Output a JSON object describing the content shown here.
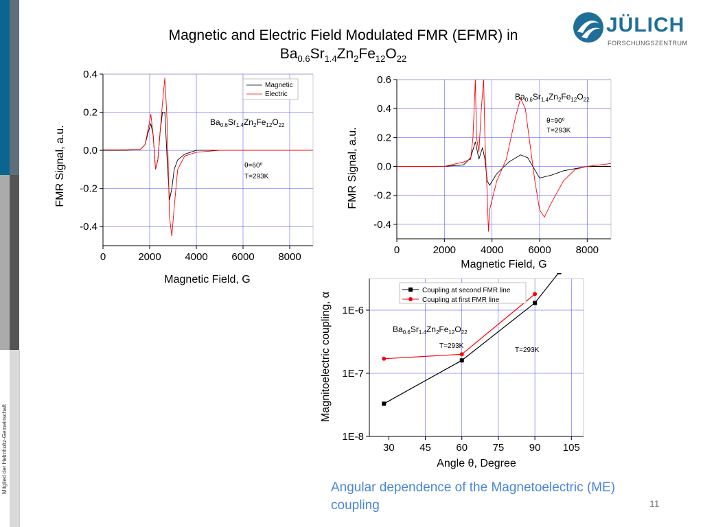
{
  "slide": {
    "title_line1": "Magnetic and Electric Field Modulated FMR (EFMR) in",
    "formula": [
      "Ba",
      "0.6",
      "Sr",
      "1.4",
      "Zn",
      "2",
      "Fe",
      "12",
      "O",
      "22"
    ],
    "caption": "Angular dependence of the Magnetoelectric (ME) coupling",
    "page_number": "11",
    "side_text": "Mitglied der Helmholtz-Gemeinschaft",
    "logo_word": "JÜLICH",
    "logo_sub": "FORSCHUNGSZENTRUM",
    "colors": {
      "brand_blue": "#1f6e98",
      "caption_blue": "#4a86d8",
      "grid": "#4040ff",
      "magnetic": "#000000",
      "electric": "#ff0000"
    }
  },
  "chart_data": [
    {
      "type": "line",
      "xlabel": "Magnetic Field, G",
      "ylabel": "FMR Signal, a.u.",
      "xlim": [
        0,
        9000
      ],
      "ylim": [
        -0.5,
        0.4
      ],
      "xticks": [
        0,
        2000,
        4000,
        6000,
        8000
      ],
      "yticks": [
        0.4,
        0.2,
        0.0,
        -0.2,
        -0.4
      ],
      "ytick_labels": [
        "0.4",
        "0.2",
        "0.0",
        "-0.2",
        "-0.4"
      ],
      "grid": true,
      "legend_position": "top-right",
      "annotations": [
        "θ=60⁰",
        "T=293K"
      ],
      "series": [
        {
          "name": "Magnetic",
          "color": "#000000",
          "x": [
            0,
            1000,
            1600,
            1800,
            1950,
            2050,
            2150,
            2250,
            2350,
            2450,
            2550,
            2650,
            2750,
            2850,
            2950,
            3050,
            3200,
            3500,
            4000,
            5000,
            9000
          ],
          "y": [
            0,
            0,
            0.005,
            0.03,
            0.1,
            0.14,
            0.08,
            -0.1,
            -0.05,
            0.1,
            0.2,
            0.2,
            -0.05,
            -0.26,
            -0.2,
            -0.1,
            -0.05,
            -0.02,
            0,
            0,
            0
          ]
        },
        {
          "name": "Electric",
          "color": "#ff0000",
          "x": [
            0,
            1000,
            1600,
            1800,
            1950,
            2050,
            2150,
            2250,
            2350,
            2450,
            2550,
            2650,
            2750,
            2850,
            2950,
            3050,
            3200,
            3500,
            4000,
            5000,
            9000
          ],
          "y": [
            0.003,
            0.003,
            0.005,
            0.03,
            0.12,
            0.19,
            0.08,
            -0.1,
            -0.05,
            0.1,
            0.25,
            0.38,
            0.15,
            -0.35,
            -0.45,
            -0.3,
            -0.1,
            -0.03,
            -0.01,
            0,
            0
          ]
        }
      ]
    },
    {
      "type": "line",
      "xlabel": "Magnetic Field, G",
      "ylabel": "FMR Signal, a.u.",
      "xlim": [
        0,
        9000
      ],
      "ylim": [
        -0.5,
        0.6
      ],
      "xticks": [
        0,
        2000,
        4000,
        6000,
        8000
      ],
      "yticks": [
        0.6,
        0.4,
        0.2,
        0.0,
        -0.2,
        -0.4
      ],
      "ytick_labels": [
        "0.6",
        "0.4",
        "0.2",
        "0.0",
        "-0.2",
        "-0.4"
      ],
      "grid": true,
      "annotations": [
        "θ=90⁰",
        "T=293K"
      ],
      "series": [
        {
          "name": "Magnetic",
          "color": "#000000",
          "x": [
            0,
            2000,
            2800,
            3100,
            3300,
            3450,
            3600,
            3700,
            3800,
            3900,
            4200,
            4700,
            5200,
            5500,
            6000,
            6500,
            7000,
            8000,
            9000
          ],
          "y": [
            0,
            0,
            0.01,
            0.06,
            0.17,
            0.05,
            0.13,
            0.05,
            -0.1,
            -0.13,
            -0.05,
            0.03,
            0.08,
            0.06,
            -0.08,
            -0.06,
            -0.03,
            0,
            0
          ]
        },
        {
          "name": "Electric",
          "color": "#ff0000",
          "x": [
            0,
            2000,
            2800,
            3100,
            3200,
            3300,
            3350,
            3450,
            3550,
            3650,
            3700,
            3750,
            3800,
            3850,
            3900,
            4200,
            4600,
            5000,
            5200,
            5400,
            5600,
            5800,
            6000,
            6200,
            6500,
            7000,
            7500,
            8000,
            9000
          ],
          "y": [
            0,
            0,
            0.03,
            0.05,
            0.2,
            0.6,
            0.2,
            0.1,
            0.4,
            0.6,
            0.2,
            0.0,
            -0.2,
            -0.45,
            -0.3,
            -0.1,
            0.05,
            0.35,
            0.47,
            0.4,
            0.15,
            -0.1,
            -0.3,
            -0.35,
            -0.25,
            -0.1,
            -0.02,
            0.0,
            0.02
          ]
        }
      ]
    },
    {
      "type": "line",
      "title": "",
      "xlabel": "Angle θ, Degree",
      "ylabel": "Magnitoelectric coupling, α",
      "xlim": [
        22,
        110
      ],
      "ylim_log10": [
        -8,
        -5.5
      ],
      "y_scale": "log",
      "xticks": [
        30,
        45,
        60,
        75,
        90,
        105
      ],
      "ytick_labels": [
        "1E-6",
        "1E-7",
        "1E-8"
      ],
      "ytick_log10": [
        -6,
        -7,
        -8
      ],
      "grid": true,
      "legend_position": "top",
      "annotations": [
        "T=293K",
        "T=293K"
      ],
      "series": [
        {
          "name": "Coupling at second FMR line",
          "color": "#000000",
          "marker": "square",
          "x": [
            28,
            60,
            90,
            100
          ],
          "y": [
            3.3e-08,
            1.6e-07,
            1.3e-06,
            4e-06
          ]
        },
        {
          "name": "Coupling at first FMR line",
          "color": "#ff0000",
          "marker": "circle",
          "x": [
            28,
            60,
            90
          ],
          "y": [
            1.7e-07,
            2e-07,
            1.8e-06
          ]
        }
      ]
    }
  ]
}
